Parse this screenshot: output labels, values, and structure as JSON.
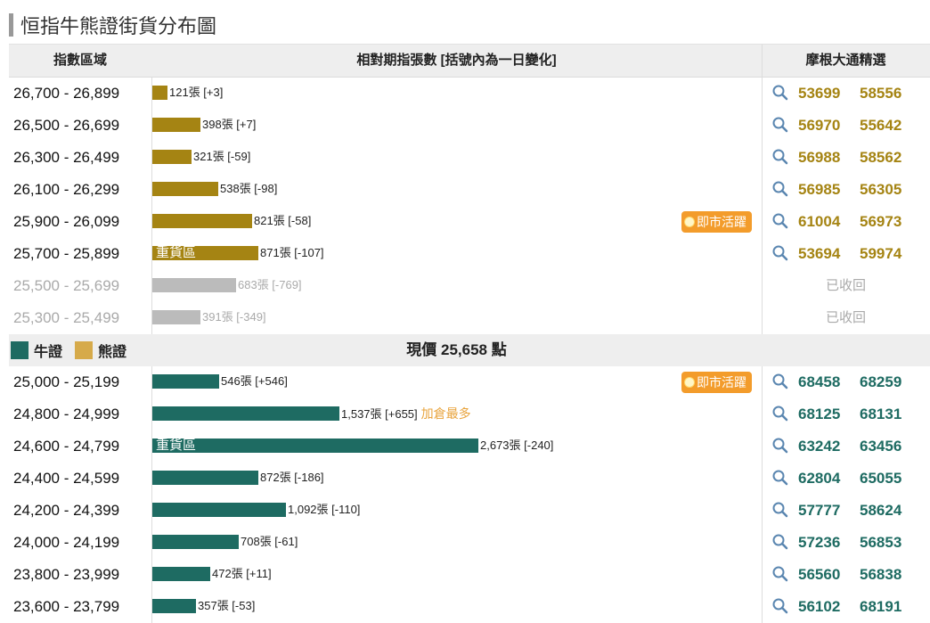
{
  "page_title": "恒指牛熊證街貨分布圖",
  "headers": {
    "range": "指數區域",
    "chart": "相對期指張數 [括號內為一日變化]",
    "picks": "摩根大通精選"
  },
  "colors": {
    "bear": "#a58413",
    "bull": "#1e6b62",
    "recalled": "#bbbbbb",
    "hot": "#f39c2b"
  },
  "bear_rows": [
    {
      "range": "26,700 - 26,899",
      "contracts": 121,
      "label": "121張 [+3]",
      "codes": [
        "53699",
        "58556"
      ]
    },
    {
      "range": "26,500 - 26,699",
      "contracts": 398,
      "label": "398張 [+7]",
      "codes": [
        "56970",
        "55642"
      ]
    },
    {
      "range": "26,300 - 26,499",
      "contracts": 321,
      "label": "321張 [-59]",
      "codes": [
        "56988",
        "58562"
      ]
    },
    {
      "range": "26,100 - 26,299",
      "contracts": 538,
      "label": "538張 [-98]",
      "codes": [
        "56985",
        "56305"
      ]
    },
    {
      "range": "25,900 - 26,099",
      "contracts": 821,
      "label": "821張 [-58]",
      "codes": [
        "61004",
        "56973"
      ],
      "hot": "即市活躍"
    },
    {
      "range": "25,700 - 25,899",
      "contracts": 871,
      "label": "871張 [-107]",
      "codes": [
        "53694",
        "59974"
      ],
      "tag": "重貨區"
    },
    {
      "range": "25,500 - 25,699",
      "contracts": 683,
      "label": "683張 [-769]",
      "recalled": "已收回"
    },
    {
      "range": "25,300 - 25,499",
      "contracts": 391,
      "label": "391張 [-349]",
      "recalled": "已收回"
    }
  ],
  "legend": {
    "bull": "牛證",
    "bear": "熊證"
  },
  "current_price": "現價 25,658 點",
  "bull_rows": [
    {
      "range": "25,000 - 25,199",
      "contracts": 546,
      "label": "546張 [+546]",
      "codes": [
        "68458",
        "68259"
      ],
      "hot": "即市活躍"
    },
    {
      "range": "24,800 - 24,999",
      "contracts": 1537,
      "label": "1,537張 [+655]",
      "note": "加倉最多",
      "codes": [
        "68125",
        "68131"
      ]
    },
    {
      "range": "24,600 - 24,799",
      "contracts": 2673,
      "label": "2,673張 [-240]",
      "codes": [
        "63242",
        "63456"
      ],
      "tag": "重貨區"
    },
    {
      "range": "24,400 - 24,599",
      "contracts": 872,
      "label": "872張 [-186]",
      "codes": [
        "62804",
        "65055"
      ]
    },
    {
      "range": "24,200 - 24,399",
      "contracts": 1092,
      "label": "1,092張 [-110]",
      "codes": [
        "57777",
        "58624"
      ]
    },
    {
      "range": "24,000 - 24,199",
      "contracts": 708,
      "label": "708張 [-61]",
      "codes": [
        "57236",
        "56853"
      ]
    },
    {
      "range": "23,800 - 23,999",
      "contracts": 472,
      "label": "472張 [+11]",
      "codes": [
        "56560",
        "56838"
      ]
    },
    {
      "range": "23,600 - 23,799",
      "contracts": 357,
      "label": "357張 [-53]",
      "codes": [
        "56102",
        "68191"
      ]
    }
  ]
}
